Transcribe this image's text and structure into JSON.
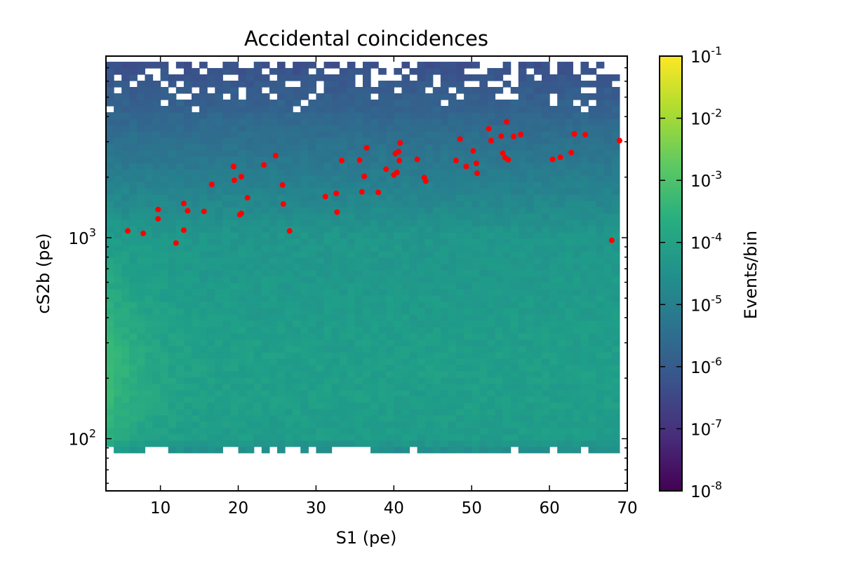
{
  "chart_data": {
    "type": "heatmap",
    "title": "Accidental coincidences",
    "xlabel": "S1 (pe)",
    "ylabel": "cS2b (pe)",
    "xlim": [
      3,
      70
    ],
    "ylim": [
      55,
      8000
    ],
    "yscale": "log",
    "x_ticks": [
      10,
      20,
      30,
      40,
      50,
      60,
      70
    ],
    "x_tick_labels": [
      "10",
      "20",
      "30",
      "40",
      "50",
      "60",
      "70"
    ],
    "y_ticks": [
      100,
      1000
    ],
    "y_tick_labels": [
      {
        "base": "10",
        "exp": "2"
      },
      {
        "base": "10",
        "exp": "3"
      }
    ],
    "heatmap": {
      "x_range": [
        3,
        69
      ],
      "y_range": [
        85,
        7500
      ],
      "colormap": "viridis",
      "color_scale": "log",
      "peak_region": "S1 3–10 pe, cS2b 150–300 pe",
      "sparse_region": "cS2b above ~4000 pe"
    },
    "colorbar": {
      "label": "Events/bin",
      "range": [
        1e-08,
        0.1
      ],
      "scale": "log",
      "tick_labels": [
        {
          "base": "10",
          "exp": "-1"
        },
        {
          "base": "10",
          "exp": "-2"
        },
        {
          "base": "10",
          "exp": "-3"
        },
        {
          "base": "10",
          "exp": "-4"
        },
        {
          "base": "10",
          "exp": "-5"
        },
        {
          "base": "10",
          "exp": "-6"
        },
        {
          "base": "10",
          "exp": "-7"
        },
        {
          "base": "10",
          "exp": "-8"
        }
      ]
    },
    "overlay_points": {
      "color": "#ff0000",
      "points": [
        [
          5.8,
          1080
        ],
        [
          7.8,
          1050
        ],
        [
          9.7,
          1380
        ],
        [
          9.7,
          1240
        ],
        [
          12.0,
          940
        ],
        [
          13.0,
          1480
        ],
        [
          13.0,
          1090
        ],
        [
          13.5,
          1360
        ],
        [
          15.6,
          1350
        ],
        [
          16.6,
          1840
        ],
        [
          19.4,
          2260
        ],
        [
          19.5,
          1930
        ],
        [
          20.2,
          1300
        ],
        [
          20.4,
          1320
        ],
        [
          20.4,
          2010
        ],
        [
          21.2,
          1580
        ],
        [
          23.3,
          2300
        ],
        [
          24.8,
          2560
        ],
        [
          25.7,
          1830
        ],
        [
          25.8,
          1470
        ],
        [
          26.6,
          1080
        ],
        [
          31.2,
          1600
        ],
        [
          32.6,
          1660
        ],
        [
          32.7,
          1340
        ],
        [
          33.3,
          2420
        ],
        [
          35.6,
          2430
        ],
        [
          35.9,
          1690
        ],
        [
          36.2,
          2020
        ],
        [
          36.5,
          2800
        ],
        [
          38.0,
          1680
        ],
        [
          39.0,
          2190
        ],
        [
          40.0,
          2050
        ],
        [
          40.2,
          2620
        ],
        [
          40.4,
          2110
        ],
        [
          40.6,
          2680
        ],
        [
          40.7,
          2420
        ],
        [
          40.8,
          2960
        ],
        [
          43.0,
          2450
        ],
        [
          43.9,
          1990
        ],
        [
          44.1,
          1910
        ],
        [
          48.0,
          2420
        ],
        [
          48.5,
          3090
        ],
        [
          49.3,
          2260
        ],
        [
          50.2,
          2700
        ],
        [
          50.6,
          2340
        ],
        [
          50.7,
          2090
        ],
        [
          52.2,
          3480
        ],
        [
          52.5,
          3040
        ],
        [
          53.8,
          3200
        ],
        [
          54.0,
          2630
        ],
        [
          54.3,
          2500
        ],
        [
          54.5,
          3770
        ],
        [
          54.7,
          2440
        ],
        [
          55.4,
          3190
        ],
        [
          56.3,
          3260
        ],
        [
          60.4,
          2450
        ],
        [
          61.4,
          2510
        ],
        [
          62.8,
          2650
        ],
        [
          63.2,
          3280
        ],
        [
          64.6,
          3250
        ],
        [
          68.0,
          970
        ],
        [
          69.0,
          3040
        ]
      ]
    }
  }
}
